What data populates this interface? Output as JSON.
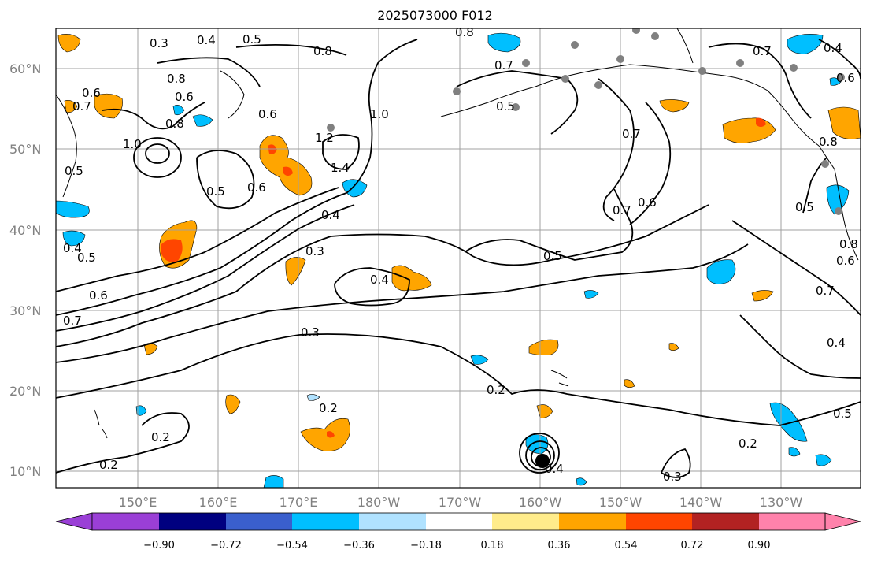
{
  "title": "2025073000 F012",
  "latitude_labels": [
    "60°N",
    "50°N",
    "40°N",
    "30°N",
    "20°N",
    "10°N"
  ],
  "longitude_labels": [
    "150°E",
    "160°E",
    "170°E",
    "180°W",
    "170°W",
    "160°W",
    "150°W",
    "140°W",
    "130°W"
  ],
  "colorbar": {
    "tick_labels": [
      "−0.90",
      "−0.72",
      "−0.54",
      "−0.36",
      "−0.18",
      "0.18",
      "0.36",
      "0.54",
      "0.72",
      "0.90"
    ],
    "colors": [
      "#9a3fd6",
      "#000080",
      "#3a5fcd",
      "#00bfff",
      "#b0e2ff",
      "#ffffff",
      "#ffec8b",
      "#ffa500",
      "#ff4500",
      "#b22222",
      "#ff82ab"
    ]
  },
  "contour_labels": [
    "0.3",
    "0.4",
    "0.5",
    "0.8",
    "0.6",
    "0.7",
    "0.8",
    "1.0",
    "0.8",
    "0.6",
    "1.2",
    "1.4",
    "0.5",
    "0.6",
    "0.4",
    "0.3",
    "0.4",
    "0.5",
    "0.7",
    "0.6",
    "0.7",
    "0.5",
    "0.3",
    "0.2",
    "0.2",
    "0.2",
    "0.2",
    "0.4",
    "0.3",
    "0.2",
    "0.5",
    "0.4",
    "0.7",
    "0.8",
    "0.6",
    "0.7",
    "0.4",
    "0.6",
    "0.5",
    "0.8",
    "0.7",
    "0.6",
    "1.0",
    "0.8",
    "0.5",
    "0.4",
    "0.5",
    "0.6",
    "0.7"
  ],
  "colors": {
    "contour": "#000000",
    "grid": "#a0a0a0",
    "positive_light": "#ffec8b",
    "positive_mid": "#ffa500",
    "positive_strong": "#ff4500",
    "negative_light": "#b0e2ff",
    "negative_mid": "#00bfff",
    "station_marker": "#808080"
  }
}
